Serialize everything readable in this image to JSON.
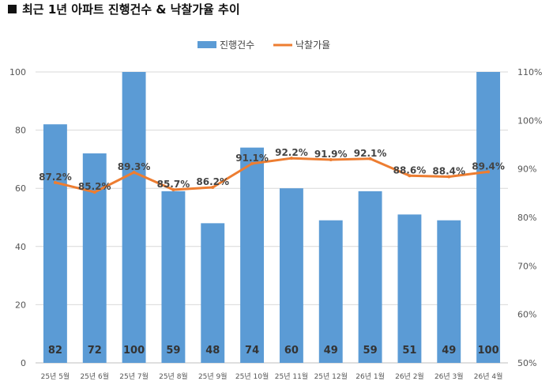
{
  "title": "최근 1년 아파트 진행건수 & 낙찰가율 추이",
  "colors": {
    "bar": "#5B9BD5",
    "line": "#ED7D31",
    "grid": "#D9D9D9",
    "axis": "#BFBFBF"
  },
  "chart_data": {
    "type": "bar",
    "title": "최근 1년 아파트 진행건수 & 낙찰가율 추이",
    "categories": [
      "25년 5월",
      "25년 6월",
      "25년 7월",
      "25년 8월",
      "25년 9월",
      "25년 10월",
      "25년 11월",
      "25년 12월",
      "26년 1월",
      "26년 2월",
      "26년 3월",
      "26년 4월"
    ],
    "series": [
      {
        "name": "진행건수",
        "type": "bar",
        "axis": "left",
        "values": [
          82,
          72,
          100,
          59,
          48,
          74,
          60,
          49,
          59,
          51,
          49,
          100
        ],
        "labels": [
          "82",
          "72",
          "100",
          "59",
          "48",
          "74",
          "60",
          "49",
          "59",
          "51",
          "49",
          "100"
        ]
      },
      {
        "name": "낙찰가율",
        "type": "line",
        "axis": "right",
        "values": [
          87.2,
          85.2,
          89.3,
          85.7,
          86.2,
          91.1,
          92.2,
          91.9,
          92.1,
          88.6,
          88.4,
          89.4
        ],
        "labels": [
          "87.2%",
          "85.2%",
          "89.3%",
          "85.7%",
          "86.2%",
          "91.1%",
          "92.2%",
          "91.9%",
          "92.1%",
          "88.6%",
          "88.4%",
          "89.4%"
        ]
      }
    ],
    "ylim": [
      0,
      100
    ],
    "yticks": [
      "0",
      "20",
      "40",
      "60",
      "80",
      "100"
    ],
    "y2lim": [
      50,
      110
    ],
    "y2ticks": [
      "50%",
      "60%",
      "70%",
      "80%",
      "90%",
      "100%",
      "110%"
    ],
    "legend": "top-center",
    "grid": true
  }
}
